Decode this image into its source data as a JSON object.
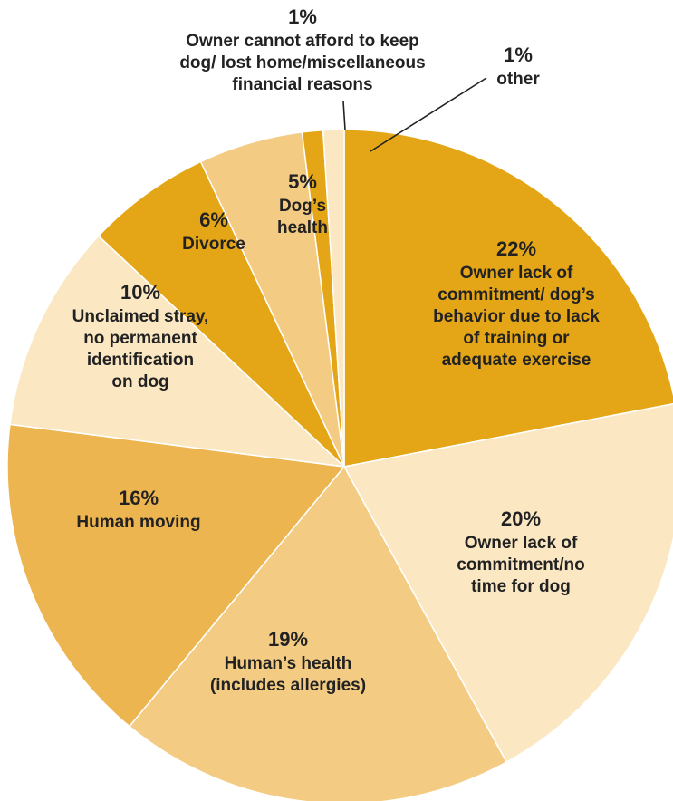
{
  "chart_data": {
    "type": "pie",
    "start_angle_deg": 90,
    "direction": "clockwise",
    "slices": [
      {
        "key": "owner-lack-commitment-behavior",
        "value": 22,
        "pct_label": "22%",
        "label_lines": [
          "Owner lack of",
          "commitment/ dog’s",
          "behavior due to lack",
          "of training or",
          "adequate exercise"
        ],
        "color": "#E4A616"
      },
      {
        "key": "owner-lack-commitment-time",
        "value": 20,
        "pct_label": "20%",
        "label_lines": [
          "Owner lack of",
          "commitment/no",
          "time for dog"
        ],
        "color": "#FBE8C3"
      },
      {
        "key": "human-health",
        "value": 19,
        "pct_label": "19%",
        "label_lines": [
          "Human’s health",
          "(includes allergies)"
        ],
        "color": "#F3CB83"
      },
      {
        "key": "human-moving",
        "value": 16,
        "pct_label": "16%",
        "label_lines": [
          "Human moving"
        ],
        "color": "#EDB550"
      },
      {
        "key": "unclaimed-stray",
        "value": 10,
        "pct_label": "10%",
        "label_lines": [
          "Unclaimed stray,",
          "no permanent",
          "identification",
          "on dog"
        ],
        "color": "#FBE8C3"
      },
      {
        "key": "divorce",
        "value": 6,
        "pct_label": "6%",
        "label_lines": [
          "Divorce"
        ],
        "color": "#E4A616"
      },
      {
        "key": "dogs-health",
        "value": 5,
        "pct_label": "5%",
        "label_lines": [
          "Dog’s",
          "health"
        ],
        "color": "#F3CB83"
      },
      {
        "key": "owner-cannot-afford",
        "value": 1,
        "pct_label": "1%",
        "label_lines": [
          "Owner cannot afford to keep",
          "dog/ lost home/miscellaneous",
          "financial reasons"
        ],
        "color": "#E4A616"
      },
      {
        "key": "other",
        "value": 1,
        "pct_label": "1%",
        "label_lines": [
          "other"
        ],
        "color": "#FBE8C3"
      }
    ]
  }
}
